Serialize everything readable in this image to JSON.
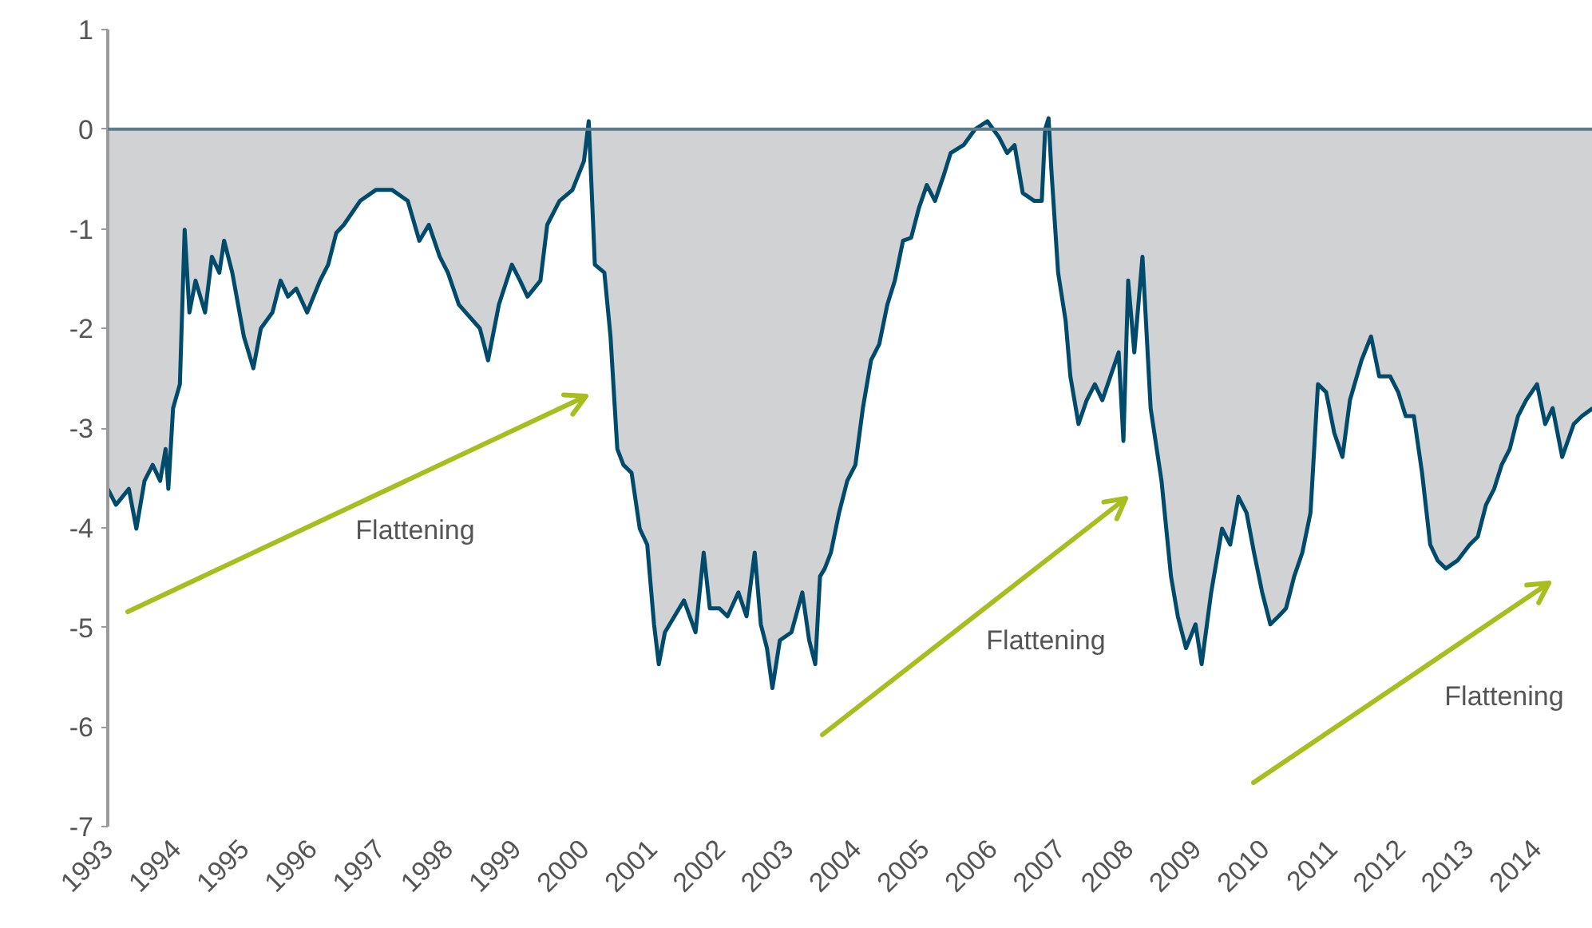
{
  "chart_data": {
    "type": "area",
    "x": [
      1993.0,
      1993.12,
      1993.31,
      1993.42,
      1993.54,
      1993.66,
      1993.77,
      1993.85,
      1993.89,
      1993.96,
      1994.06,
      1994.13,
      1994.2,
      1994.29,
      1994.43,
      1994.53,
      1994.64,
      1994.71,
      1994.83,
      1995.0,
      1995.14,
      1995.25,
      1995.42,
      1995.54,
      1995.65,
      1995.77,
      1995.93,
      1996.12,
      1996.24,
      1996.36,
      1996.47,
      1996.71,
      1996.94,
      1997.18,
      1997.41,
      1997.58,
      1997.72,
      1997.88,
      1998.0,
      1998.16,
      1998.47,
      1998.59,
      1998.75,
      1998.94,
      1999.06,
      1999.17,
      1999.36,
      1999.46,
      1999.64,
      1999.83,
      2000.0,
      2000.07,
      2000.16,
      2000.3,
      2000.39,
      2000.49,
      2000.58,
      2000.7,
      2000.82,
      2000.93,
      2001.03,
      2001.1,
      2001.19,
      2001.33,
      2001.47,
      2001.64,
      2001.76,
      2001.85,
      2001.99,
      2002.11,
      2002.27,
      2002.39,
      2002.51,
      2002.6,
      2002.69,
      2002.77,
      2002.88,
      2003.05,
      2003.21,
      2003.31,
      2003.4,
      2003.47,
      2003.54,
      2003.63,
      2003.75,
      2003.87,
      2003.99,
      2004.1,
      2004.22,
      2004.34,
      2004.46,
      2004.57,
      2004.69,
      2004.81,
      2004.92,
      2005.04,
      2005.16,
      2005.28,
      2005.39,
      2005.58,
      2005.75,
      2005.93,
      2006.1,
      2006.22,
      2006.33,
      2006.45,
      2006.62,
      2006.73,
      2006.78,
      2006.83,
      2006.87,
      2006.97,
      2007.08,
      2007.15,
      2007.27,
      2007.39,
      2007.51,
      2007.62,
      2007.74,
      2007.86,
      2007.93,
      2008.0,
      2008.09,
      2008.21,
      2008.33,
      2008.49,
      2008.63,
      2008.73,
      2008.85,
      2008.99,
      2009.08,
      2009.22,
      2009.38,
      2009.5,
      2009.62,
      2009.74,
      2009.85,
      2009.97,
      2010.09,
      2010.21,
      2010.32,
      2010.44,
      2010.56,
      2010.68,
      2010.79,
      2010.91,
      2011.03,
      2011.15,
      2011.26,
      2011.43,
      2011.57,
      2011.69,
      2011.85,
      2011.97,
      2012.08,
      2012.2,
      2012.32,
      2012.44,
      2012.55,
      2012.67,
      2012.84,
      2013.02,
      2013.14,
      2013.26,
      2013.38,
      2013.49,
      2013.61,
      2013.73,
      2013.85,
      2014.01,
      2014.13,
      2014.24,
      2014.38,
      2014.55,
      2014.67,
      2014.83
    ],
    "series": [
      {
        "color": "#004a6b",
        "values": [
          -3.61,
          -3.77,
          -3.61,
          -4.01,
          -3.53,
          -3.37,
          -3.53,
          -3.21,
          -3.61,
          -2.8,
          -2.56,
          -1.01,
          -1.84,
          -1.52,
          -1.84,
          -1.28,
          -1.44,
          -1.12,
          -1.44,
          -2.08,
          -2.4,
          -2.0,
          -1.84,
          -1.52,
          -1.68,
          -1.6,
          -1.84,
          -1.52,
          -1.36,
          -1.04,
          -0.96,
          -0.72,
          -0.61,
          -0.61,
          -0.72,
          -1.12,
          -0.96,
          -1.28,
          -1.44,
          -1.76,
          -2.0,
          -2.32,
          -1.76,
          -1.36,
          -1.52,
          -1.68,
          -1.52,
          -0.96,
          -0.72,
          -0.61,
          -0.32,
          0.08,
          -1.36,
          -1.44,
          -2.08,
          -3.21,
          -3.37,
          -3.45,
          -4.01,
          -4.17,
          -4.97,
          -5.37,
          -5.05,
          -4.89,
          -4.73,
          -5.05,
          -4.25,
          -4.81,
          -4.81,
          -4.89,
          -4.65,
          -4.89,
          -4.25,
          -4.97,
          -5.21,
          -5.61,
          -5.13,
          -5.05,
          -4.65,
          -5.13,
          -5.37,
          -4.49,
          -4.41,
          -4.25,
          -3.85,
          -3.53,
          -3.37,
          -2.8,
          -2.32,
          -2.16,
          -1.76,
          -1.52,
          -1.12,
          -1.09,
          -0.8,
          -0.56,
          -0.72,
          -0.48,
          -0.24,
          -0.16,
          0.0,
          0.08,
          -0.08,
          -0.24,
          -0.16,
          -0.64,
          -0.72,
          -0.72,
          0.0,
          0.11,
          -0.4,
          -1.44,
          -1.92,
          -2.48,
          -2.96,
          -2.72,
          -2.56,
          -2.72,
          -2.48,
          -2.24,
          -3.13,
          -1.52,
          -2.24,
          -1.28,
          -2.8,
          -3.53,
          -4.49,
          -4.89,
          -5.21,
          -4.97,
          -5.37,
          -4.65,
          -4.01,
          -4.17,
          -3.69,
          -3.85,
          -4.25,
          -4.65,
          -4.97,
          -4.89,
          -4.81,
          -4.49,
          -4.25,
          -3.85,
          -2.56,
          -2.64,
          -3.05,
          -3.29,
          -2.72,
          -2.32,
          -2.08,
          -2.48,
          -2.48,
          -2.64,
          -2.88,
          -2.88,
          -3.45,
          -4.17,
          -4.33,
          -4.41,
          -4.33,
          -4.17,
          -4.09,
          -3.77,
          -3.61,
          -3.37,
          -3.21,
          -2.88,
          -2.72,
          -2.56,
          -2.96,
          -2.8,
          -3.29,
          -2.96,
          -2.88,
          -2.8
        ]
      }
    ],
    "xlim": [
      1993,
      2014.83
    ],
    "xticks": [
      1993,
      1994,
      1995,
      1996,
      1997,
      1998,
      1999,
      2000,
      2001,
      2002,
      2003,
      2004,
      2005,
      2006,
      2007,
      2008,
      2009,
      2010,
      2011,
      2012,
      2013,
      2014
    ],
    "ylim": [
      -7,
      1
    ],
    "yticks": [
      -7,
      -6,
      -5,
      -4,
      -3,
      -2,
      -1,
      0,
      1
    ],
    "ref_lines": [
      {
        "axis": "y",
        "value": 0,
        "color": "#5b7c8c"
      }
    ],
    "annotations": [
      "Flattening",
      "Flattening",
      "Flattening"
    ],
    "grid": false
  }
}
